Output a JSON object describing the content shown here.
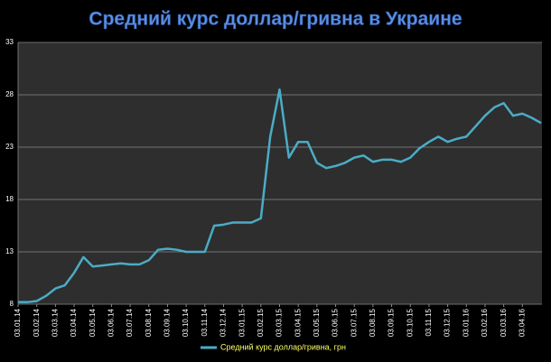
{
  "chart_data": {
    "type": "line",
    "title": "Средний курс доллар/гривна  в Украине",
    "categories": [
      "03.01.14",
      null,
      "03.02.14",
      null,
      "03.03.14",
      null,
      "03.04.14",
      null,
      "03.05.14",
      null,
      "03.06.14",
      null,
      "03.07.14",
      null,
      "03.08.14",
      null,
      "03.09.14",
      null,
      "03.10.14",
      null,
      "03.11.14",
      null,
      "03.12.14",
      null,
      "03.01.15",
      null,
      "03.02.15",
      null,
      "03.03.15",
      null,
      "03.04.15",
      null,
      "03.05.15",
      null,
      "03.06.15",
      null,
      "03.07.15",
      null,
      "03.08.15",
      null,
      "03.09.15",
      null,
      "03.10.15",
      null,
      "03.11.15",
      null,
      "03.12.15",
      null,
      "03.01.16",
      null,
      "03.02.16",
      null,
      "03.03.16",
      null,
      "03.04.16",
      null,
      null
    ],
    "series": [
      {
        "name": "Средний курс доллар/гривна, грн",
        "color": "#4bacc6",
        "values": [
          8.2,
          8.2,
          8.3,
          8.8,
          9.5,
          9.8,
          11,
          12.5,
          11.6,
          11.7,
          11.8,
          11.9,
          11.8,
          11.8,
          12.2,
          13.2,
          13.3,
          13.2,
          13,
          13,
          13,
          15.5,
          15.6,
          15.8,
          15.8,
          15.8,
          16.2,
          24,
          28.5,
          22,
          23.5,
          23.5,
          21.5,
          21,
          21.2,
          21.5,
          22,
          22.2,
          21.6,
          21.8,
          21.8,
          21.6,
          22,
          22.9,
          23.5,
          24,
          23.5,
          23.8,
          24,
          25,
          26,
          26.8,
          27.2,
          26,
          26.2,
          25.8,
          25.3
        ]
      }
    ],
    "ylim": [
      8,
      33
    ],
    "yticks": [
      8,
      13,
      18,
      23,
      28,
      33
    ],
    "grid": true,
    "legend": "bottom"
  }
}
